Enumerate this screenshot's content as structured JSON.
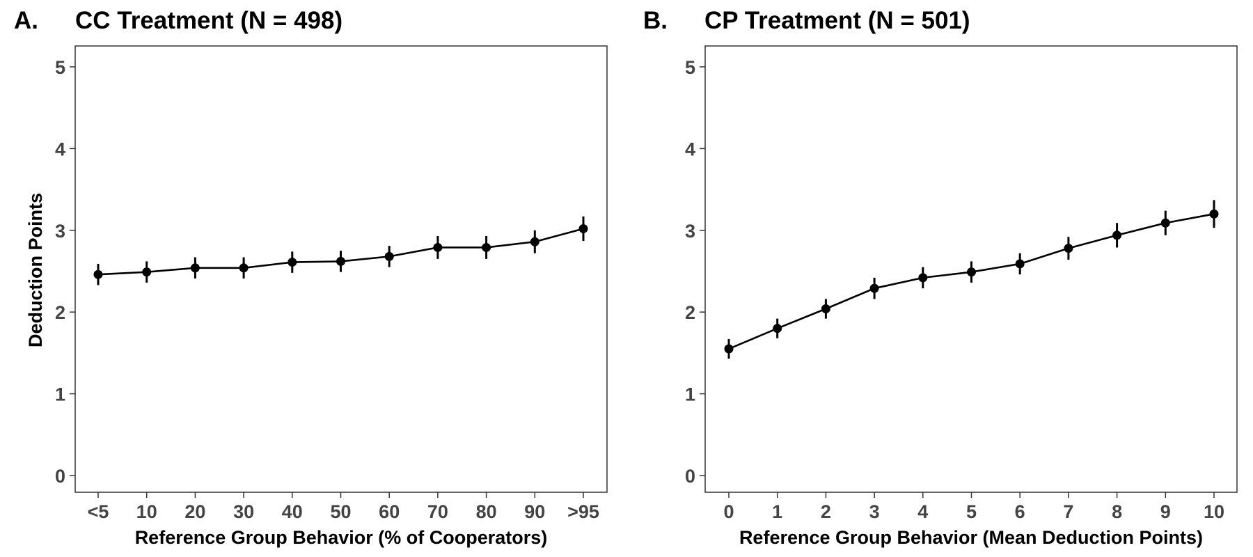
{
  "chart_data": [
    {
      "type": "line",
      "panel_letter": "A.",
      "title": "CC Treatment (N = 498)",
      "xlabel": "Reference Group Behavior (% of Cooperators)",
      "ylabel": "Deduction Points",
      "categories": [
        "<5",
        "10",
        "20",
        "30",
        "40",
        "50",
        "60",
        "70",
        "80",
        "90",
        ">95"
      ],
      "values": [
        2.46,
        2.49,
        2.54,
        2.54,
        2.61,
        2.62,
        2.68,
        2.79,
        2.79,
        2.86,
        3.02
      ],
      "error_low": [
        2.33,
        2.36,
        2.41,
        2.41,
        2.48,
        2.49,
        2.55,
        2.65,
        2.65,
        2.72,
        2.87
      ],
      "error_high": [
        2.59,
        2.62,
        2.67,
        2.67,
        2.74,
        2.75,
        2.81,
        2.93,
        2.93,
        3.0,
        3.17
      ],
      "ylim": [
        0,
        5
      ],
      "yticks": [
        "0",
        "1",
        "2",
        "3",
        "4",
        "5"
      ],
      "grid": false,
      "legend": "none"
    },
    {
      "type": "line",
      "panel_letter": "B.",
      "title": "CP Treatment (N = 501)",
      "xlabel": "Reference Group Behavior (Mean Deduction Points)",
      "ylabel": "",
      "categories": [
        "0",
        "1",
        "2",
        "3",
        "4",
        "5",
        "6",
        "7",
        "8",
        "9",
        "10"
      ],
      "values": [
        1.55,
        1.8,
        2.04,
        2.29,
        2.42,
        2.49,
        2.59,
        2.78,
        2.94,
        3.09,
        3.2
      ],
      "error_low": [
        1.43,
        1.68,
        1.92,
        2.16,
        2.29,
        2.36,
        2.46,
        2.64,
        2.79,
        2.94,
        3.03
      ],
      "error_high": [
        1.67,
        1.92,
        2.16,
        2.42,
        2.55,
        2.62,
        2.72,
        2.92,
        3.09,
        3.24,
        3.37
      ],
      "ylim": [
        0,
        5
      ],
      "yticks": [
        "0",
        "1",
        "2",
        "3",
        "4",
        "5"
      ],
      "grid": false,
      "legend": "none"
    }
  ]
}
